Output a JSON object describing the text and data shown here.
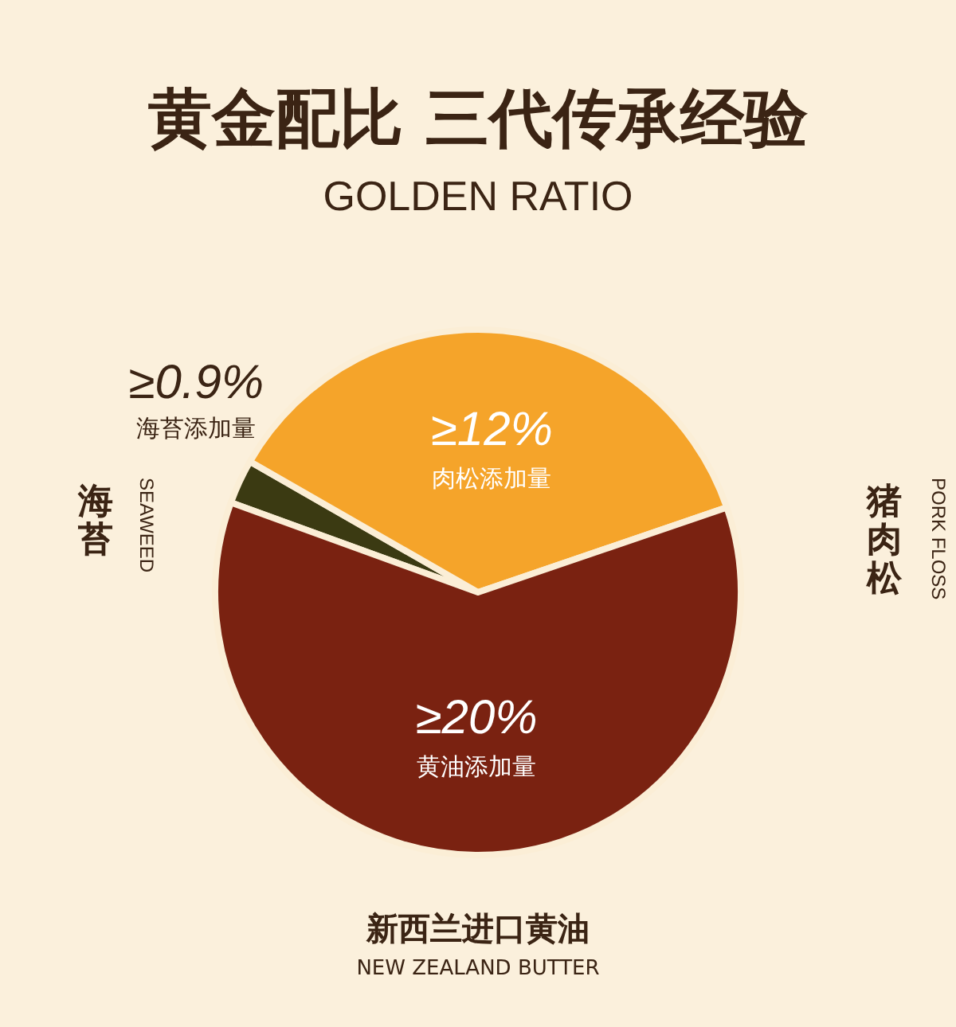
{
  "chart_data": {
    "type": "pie",
    "title": "黄金配比 三代传承经验",
    "subtitle": "GOLDEN RATIO",
    "categories": [
      "海苔添加量",
      "肉松添加量",
      "黄油添加量"
    ],
    "values": [
      0.9,
      12,
      20
    ],
    "value_labels": [
      "≥0.9%",
      "≥12%",
      "≥20%"
    ],
    "colors": [
      "#3b3a12",
      "#f5a42a",
      "#7a2211"
    ],
    "annotations": [
      "海苔",
      "SEAWEED",
      "猪肉松",
      "PORK FLOSS",
      "新西兰进口黄油",
      "NEW ZEALAND BUTTER"
    ]
  }
}
